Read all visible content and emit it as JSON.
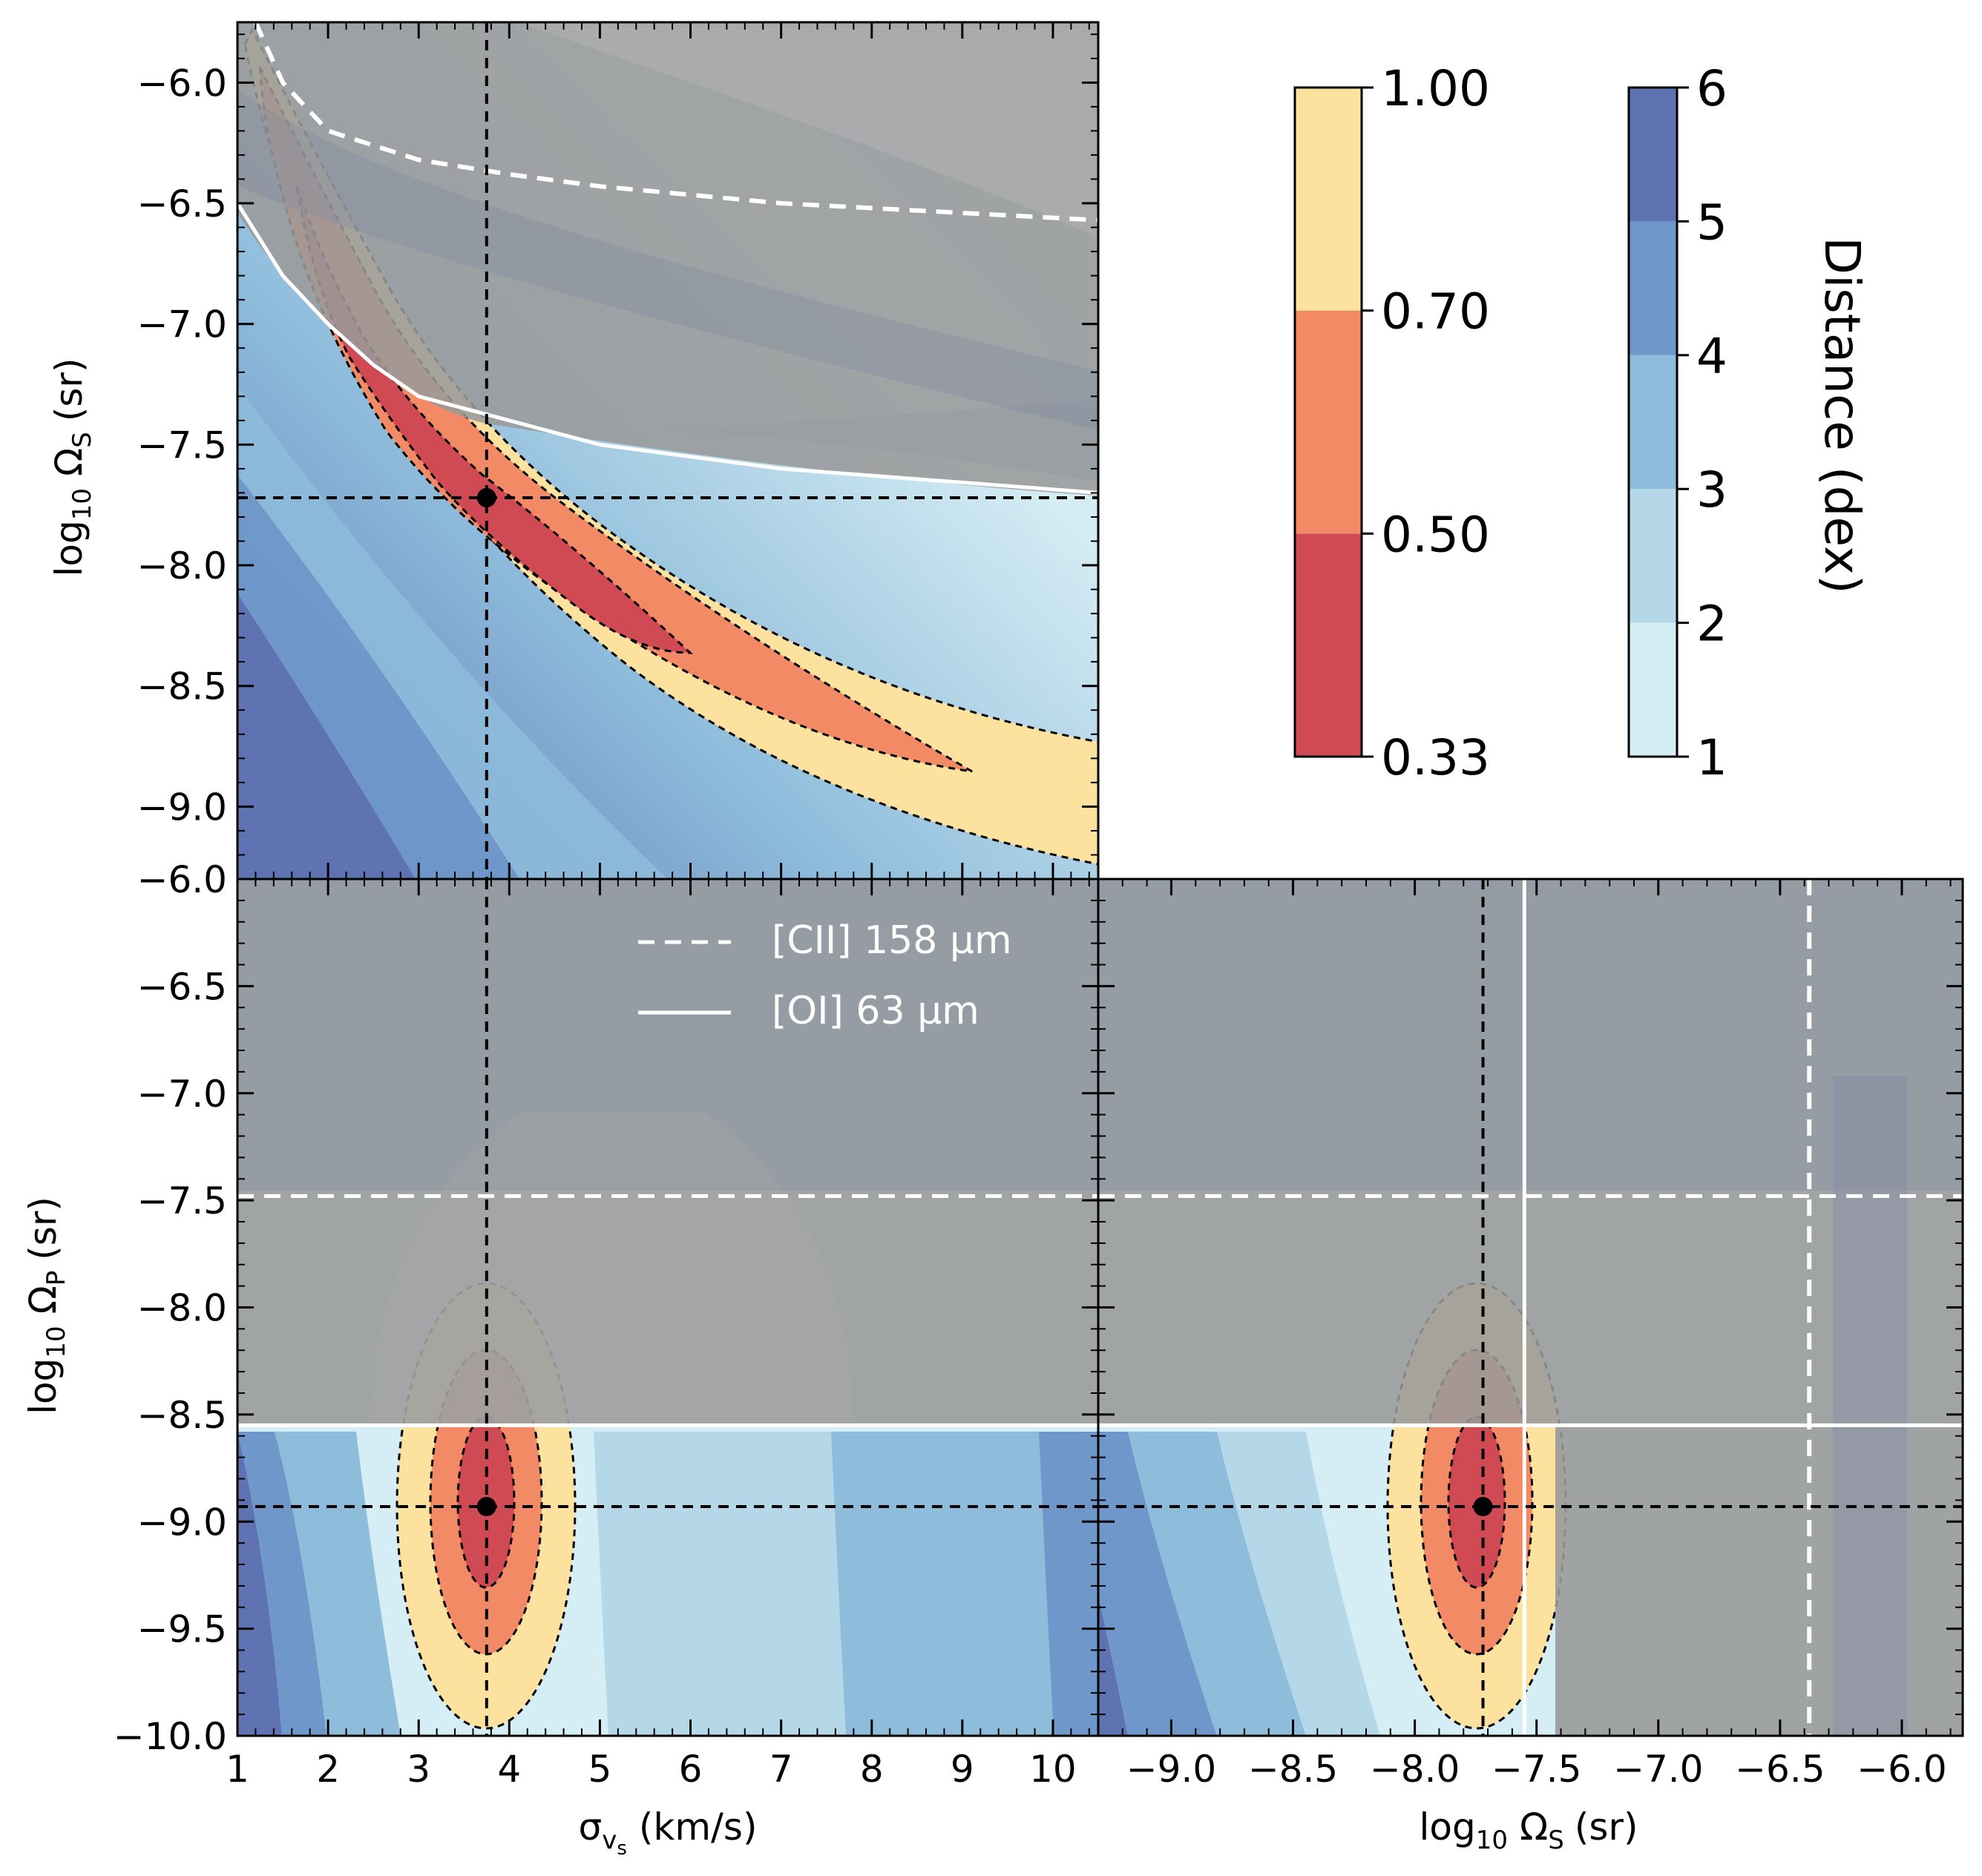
{
  "chart_data": {
    "type": "contour",
    "description_labels": {
      "top_left": {
        "xlabel": "",
        "ylabel_prefix": "log",
        "ylabel_sub": "10",
        "ylabel_main": "Ω",
        "ylabel_main_sub": "S",
        "ylabel_suffix": "(sr)",
        "xlim": [
          1.0,
          10.5
        ],
        "ylim": [
          -9.3,
          -5.75
        ],
        "yticks": [
          "-6.0",
          "-6.5",
          "-7.0",
          "-7.5",
          "-8.0",
          "-8.5",
          "-9.0"
        ],
        "ytick_values": [
          -6.0,
          -6.5,
          -7.0,
          -7.5,
          -8.0,
          -8.5,
          -9.0
        ]
      },
      "bottom_left": {
        "xlabel_main": "σ",
        "xlabel_sub": "v",
        "xlabel_subsub": "s",
        "xlabel_suffix": "(km/s)",
        "ylabel_prefix": "log",
        "ylabel_sub": "10",
        "ylabel_main": "Ω",
        "ylabel_main_sub": "P",
        "ylabel_suffix": "(sr)",
        "xlim": [
          1.0,
          10.5
        ],
        "ylim": [
          -10.0,
          -6.0
        ],
        "xticks": [
          "1",
          "2",
          "3",
          "4",
          "5",
          "6",
          "7",
          "8",
          "9",
          "10"
        ],
        "xtick_values": [
          1,
          2,
          3,
          4,
          5,
          6,
          7,
          8,
          9,
          10
        ],
        "yticks": [
          "-6.0",
          "-6.5",
          "-7.0",
          "-7.5",
          "-8.0",
          "-8.5",
          "-9.0",
          "-9.5",
          "-10.0"
        ],
        "ytick_values": [
          -6.0,
          -6.5,
          -7.0,
          -7.5,
          -8.0,
          -8.5,
          -9.0,
          -9.5,
          -10.0
        ]
      },
      "bottom_right": {
        "xlabel_prefix": "log",
        "xlabel_sub": "10",
        "xlabel_main": "Ω",
        "xlabel_main_sub": "S",
        "xlabel_suffix": "(sr)",
        "xlim": [
          -9.3,
          -5.75
        ],
        "ylim": [
          -10.0,
          -6.0
        ],
        "xticks": [
          "-9.0",
          "-8.5",
          "-8.0",
          "-7.5",
          "-7.0",
          "-6.5",
          "-6.0"
        ],
        "xtick_values": [
          -9.0,
          -8.5,
          -8.0,
          -7.5,
          -7.0,
          -6.5,
          -6.0
        ]
      }
    },
    "best_fit": {
      "sigma_vs_kms": 3.75,
      "log_omega_s": -7.72,
      "log_omega_p": -8.93
    },
    "constraints": {
      "CII_158um_log_omega_s_at_sigma": [
        [
          1.2,
          -5.75
        ],
        [
          1.5,
          -6.0
        ],
        [
          2.0,
          -6.2
        ],
        [
          3.0,
          -6.32
        ],
        [
          4.0,
          -6.38
        ],
        [
          5.0,
          -6.43
        ],
        [
          7.0,
          -6.5
        ],
        [
          10.5,
          -6.57
        ]
      ],
      "OI_63um_log_omega_s_at_sigma": [
        [
          1.0,
          -6.5
        ],
        [
          1.5,
          -6.8
        ],
        [
          2.0,
          -7.0
        ],
        [
          2.5,
          -7.17
        ],
        [
          3.0,
          -7.3
        ],
        [
          4.0,
          -7.4
        ],
        [
          5.0,
          -7.5
        ],
        [
          7.0,
          -7.6
        ],
        [
          10.5,
          -7.7
        ]
      ],
      "CII_158um_log_omega_p": -7.48,
      "OI_63um_log_omega_p": -8.55,
      "CII_158um_log_omega_s_vertical": -6.38,
      "OI_63um_log_omega_s_vertical": -7.55
    },
    "legend": [
      {
        "label": "[CII] 158 μm",
        "style": "dashed",
        "color": "#ffffff"
      },
      {
        "label": "[OI] 63 μm",
        "style": "solid",
        "color": "#ffffff"
      }
    ],
    "colorbar_probability": {
      "levels": [
        "0.33",
        "0.50",
        "0.70",
        "1.00"
      ],
      "level_values": [
        0.33,
        0.5,
        0.7,
        1.0
      ],
      "colors": [
        "#cf4a52",
        "#f38a66",
        "#fde29f"
      ]
    },
    "colorbar_distance": {
      "label": "Distance (dex)",
      "levels": [
        "1",
        "2",
        "3",
        "4",
        "5",
        "6"
      ],
      "level_values": [
        1,
        2,
        3,
        4,
        5,
        6
      ],
      "colors": [
        "#d5edf4",
        "#b4d8e8",
        "#8ebcdb",
        "#6f97c9",
        "#5f73b3"
      ]
    },
    "excluded_region_color": "#9a9a9a"
  }
}
